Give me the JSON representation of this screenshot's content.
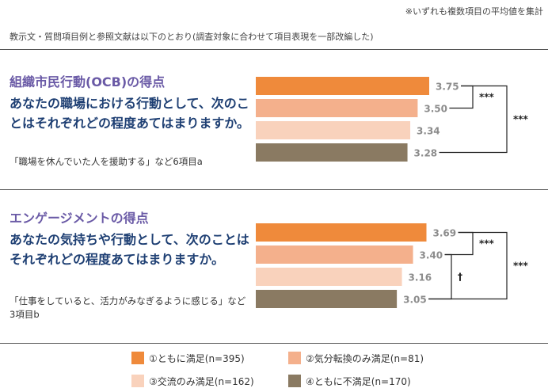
{
  "note": "※いずれも複数項目の平均値を集計",
  "intro": "教示文・質問項目例と参照文献は以下のとおり(調査対象に合わせて項目表現を一部改編した)",
  "colors": [
    "#ef8a3b",
    "#f4b08c",
    "#f9d2bc",
    "#8a7a62"
  ],
  "sections": [
    {
      "title": "組織市民行動(OCB)の得点",
      "question": "あなたの職場における行動として、次のことはそれぞれどの程度あてはまりますか。",
      "example": "「職場を休んでいた人を援助する」など6項目a"
    },
    {
      "title": "エンゲージメントの得点",
      "question": "あなたの気持ちや行動として、次のことはそれぞれどの程度あてはまりますか。",
      "example": "「仕事をしていると、活力がみなぎるように感じる」など3項目b"
    }
  ],
  "chart_data": [
    {
      "type": "bar",
      "orientation": "horizontal",
      "title": "組織市民行動(OCB)の得点",
      "categories": [
        "①ともに満足(n=395)",
        "②気分転換のみ満足(n=81)",
        "③交流のみ満足(n=162)",
        "④ともに不満足(n=170)"
      ],
      "values": [
        3.75,
        3.5,
        3.34,
        3.28
      ],
      "value_labels": [
        "3.75",
        "3.50",
        "3.34",
        "3.28"
      ],
      "significance": [
        {
          "between": [
            1,
            2
          ],
          "label": "***"
        },
        {
          "between": [
            1,
            4
          ],
          "label": "***"
        }
      ]
    },
    {
      "type": "bar",
      "orientation": "horizontal",
      "title": "エンゲージメントの得点",
      "categories": [
        "①ともに満足(n=395)",
        "②気分転換のみ満足(n=81)",
        "③交流のみ満足(n=162)",
        "④ともに不満足(n=170)"
      ],
      "values": [
        3.69,
        3.4,
        3.16,
        3.05
      ],
      "value_labels": [
        "3.69",
        "3.40",
        "3.16",
        "3.05"
      ],
      "significance": [
        {
          "between": [
            1,
            2
          ],
          "label": "***"
        },
        {
          "between": [
            1,
            4
          ],
          "label": "***"
        },
        {
          "between": [
            2,
            4
          ],
          "label": "†"
        }
      ]
    }
  ],
  "legend": [
    {
      "label": "①ともに満足(n=395)",
      "color": "#ef8a3b"
    },
    {
      "label": "②気分転換のみ満足(n=81)",
      "color": "#f4b08c"
    },
    {
      "label": "③交流のみ満足(n=162)",
      "color": "#f9d2bc"
    },
    {
      "label": "④ともに不満足(n=170)",
      "color": "#8a7a62"
    }
  ]
}
